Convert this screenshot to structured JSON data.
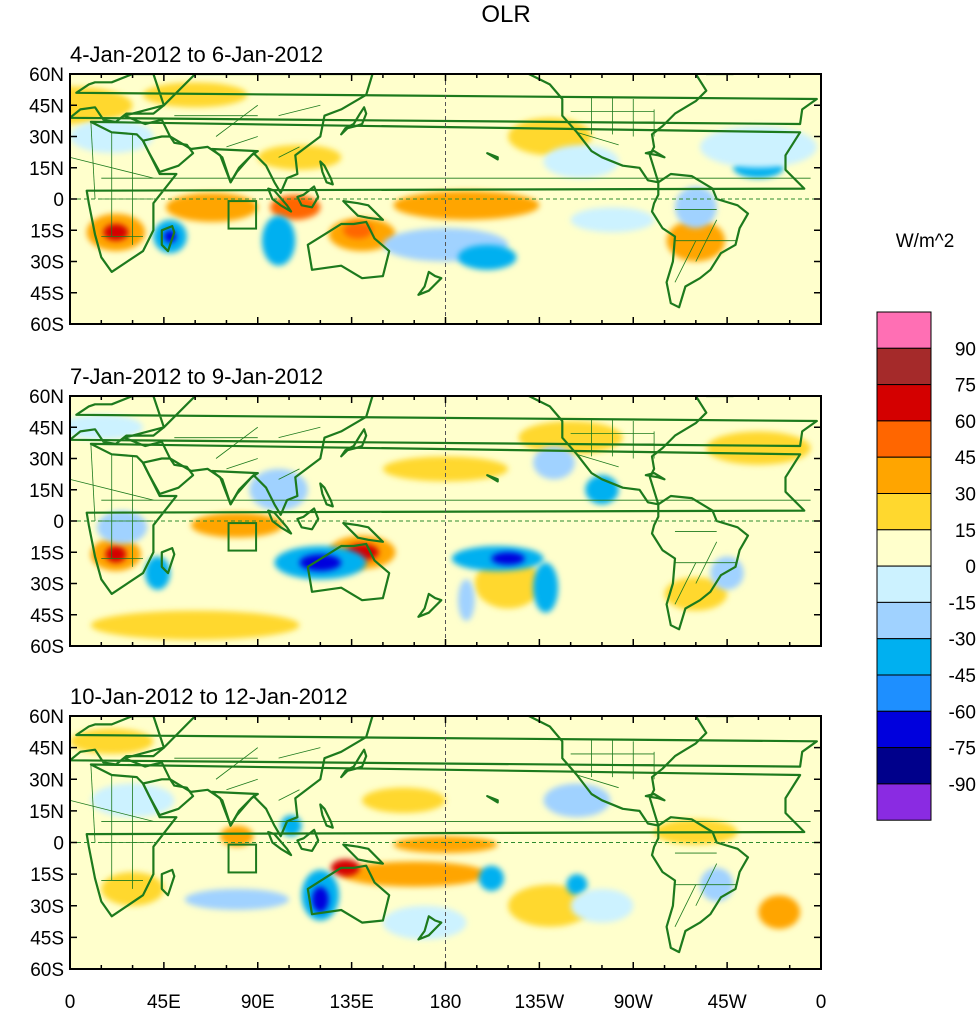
{
  "title": "OLR",
  "units_label": "W/m^2",
  "colors": {
    "land_outline": "#1d7a1d",
    "dashed_line": "#2e8b2e"
  },
  "axes": {
    "lat_ticks": [
      "60N",
      "45N",
      "30N",
      "15N",
      "0",
      "15S",
      "30S",
      "45S",
      "60S"
    ],
    "lon_ticks": [
      "0",
      "45E",
      "90E",
      "135E",
      "180",
      "135W",
      "90W",
      "45W",
      "0"
    ]
  },
  "panels": [
    {
      "label": "4-Jan-2012 to 6-Jan-2012",
      "features": [
        {
          "kind": "pos",
          "level": 2,
          "lon": 22,
          "lat": -16,
          "rx": 14,
          "ry": 9
        },
        {
          "kind": "pos",
          "level": 4,
          "lon": 22,
          "lat": -16,
          "rx": 6,
          "ry": 4
        },
        {
          "kind": "pos",
          "level": 2,
          "lon": 68,
          "lat": -4,
          "rx": 22,
          "ry": 7
        },
        {
          "kind": "pos",
          "level": 3,
          "lon": 108,
          "lat": -4,
          "rx": 12,
          "ry": 6
        },
        {
          "kind": "pos",
          "level": 2,
          "lon": 140,
          "lat": -17,
          "rx": 16,
          "ry": 8
        },
        {
          "kind": "pos",
          "level": 3,
          "lon": 138,
          "lat": -15,
          "rx": 7,
          "ry": 4
        },
        {
          "kind": "pos",
          "level": 2,
          "lon": 190,
          "lat": -3,
          "rx": 35,
          "ry": 7
        },
        {
          "kind": "pos",
          "level": 1,
          "lon": 360,
          "lat": 45,
          "rx": 30,
          "ry": 9
        },
        {
          "kind": "pos",
          "level": 2,
          "lon": 300,
          "lat": -20,
          "rx": 14,
          "ry": 10
        },
        {
          "kind": "pos",
          "level": 1,
          "lon": 230,
          "lat": 30,
          "rx": 20,
          "ry": 9
        },
        {
          "kind": "pos",
          "level": 1,
          "lon": 60,
          "lat": 50,
          "rx": 25,
          "ry": 6
        },
        {
          "kind": "pos",
          "level": 1,
          "lon": 110,
          "lat": 20,
          "rx": 20,
          "ry": 6
        },
        {
          "kind": "neg",
          "level": 3,
          "lon": 48,
          "lat": -18,
          "rx": 8,
          "ry": 8
        },
        {
          "kind": "neg",
          "level": 5,
          "lon": 48,
          "lat": -18,
          "rx": 3,
          "ry": 3
        },
        {
          "kind": "neg",
          "level": 3,
          "lon": 100,
          "lat": -20,
          "rx": 8,
          "ry": 12
        },
        {
          "kind": "neg",
          "level": 2,
          "lon": 180,
          "lat": -22,
          "rx": 30,
          "ry": 8
        },
        {
          "kind": "neg",
          "level": 3,
          "lon": 200,
          "lat": -28,
          "rx": 14,
          "ry": 6
        },
        {
          "kind": "neg",
          "level": 1,
          "lon": 245,
          "lat": 18,
          "rx": 18,
          "ry": 8
        },
        {
          "kind": "neg",
          "level": 3,
          "lon": 330,
          "lat": 15,
          "rx": 12,
          "ry": 5
        },
        {
          "kind": "neg",
          "level": 1,
          "lon": 330,
          "lat": 25,
          "rx": 28,
          "ry": 10
        },
        {
          "kind": "neg",
          "level": 2,
          "lon": 300,
          "lat": -4,
          "rx": 10,
          "ry": 10
        },
        {
          "kind": "neg",
          "level": 1,
          "lon": 260,
          "lat": -10,
          "rx": 20,
          "ry": 6
        },
        {
          "kind": "neg",
          "level": 1,
          "lon": 20,
          "lat": 30,
          "rx": 20,
          "ry": 8
        }
      ]
    },
    {
      "label": "7-Jan-2012 to 9-Jan-2012",
      "features": [
        {
          "kind": "pos",
          "level": 2,
          "lon": 22,
          "lat": -16,
          "rx": 12,
          "ry": 8
        },
        {
          "kind": "pos",
          "level": 4,
          "lon": 22,
          "lat": -16,
          "rx": 5,
          "ry": 4
        },
        {
          "kind": "pos",
          "level": 2,
          "lon": 80,
          "lat": -2,
          "rx": 22,
          "ry": 6
        },
        {
          "kind": "pos",
          "level": 2,
          "lon": 140,
          "lat": -15,
          "rx": 16,
          "ry": 8
        },
        {
          "kind": "pos",
          "level": 4,
          "lon": 140,
          "lat": -15,
          "rx": 8,
          "ry": 4
        },
        {
          "kind": "pos",
          "level": 1,
          "lon": 210,
          "lat": -30,
          "rx": 16,
          "ry": 12
        },
        {
          "kind": "pos",
          "level": 1,
          "lon": 60,
          "lat": -50,
          "rx": 50,
          "ry": 7
        },
        {
          "kind": "pos",
          "level": 1,
          "lon": 240,
          "lat": 40,
          "rx": 25,
          "ry": 8
        },
        {
          "kind": "pos",
          "level": 1,
          "lon": 330,
          "lat": 35,
          "rx": 25,
          "ry": 8
        },
        {
          "kind": "pos",
          "level": 1,
          "lon": 180,
          "lat": 25,
          "rx": 30,
          "ry": 6
        },
        {
          "kind": "pos",
          "level": 1,
          "lon": 300,
          "lat": -35,
          "rx": 15,
          "ry": 8
        },
        {
          "kind": "neg",
          "level": 3,
          "lon": 42,
          "lat": -25,
          "rx": 6,
          "ry": 8
        },
        {
          "kind": "neg",
          "level": 3,
          "lon": 120,
          "lat": -20,
          "rx": 22,
          "ry": 8
        },
        {
          "kind": "neg",
          "level": 5,
          "lon": 120,
          "lat": -20,
          "rx": 10,
          "ry": 4
        },
        {
          "kind": "neg",
          "level": 3,
          "lon": 205,
          "lat": -18,
          "rx": 22,
          "ry": 6
        },
        {
          "kind": "neg",
          "level": 5,
          "lon": 210,
          "lat": -18,
          "rx": 8,
          "ry": 3
        },
        {
          "kind": "neg",
          "level": 3,
          "lon": 228,
          "lat": -32,
          "rx": 6,
          "ry": 12
        },
        {
          "kind": "neg",
          "level": 2,
          "lon": 190,
          "lat": -38,
          "rx": 4,
          "ry": 10
        },
        {
          "kind": "neg",
          "level": 3,
          "lon": 255,
          "lat": 15,
          "rx": 8,
          "ry": 7
        },
        {
          "kind": "neg",
          "level": 2,
          "lon": 232,
          "lat": 28,
          "rx": 10,
          "ry": 8
        },
        {
          "kind": "neg",
          "level": 2,
          "lon": 100,
          "lat": 15,
          "rx": 14,
          "ry": 10
        },
        {
          "kind": "neg",
          "level": 2,
          "lon": 25,
          "lat": -3,
          "rx": 12,
          "ry": 8
        },
        {
          "kind": "neg",
          "level": 2,
          "lon": 315,
          "lat": -25,
          "rx": 8,
          "ry": 8
        },
        {
          "kind": "neg",
          "level": 1,
          "lon": 15,
          "lat": 45,
          "rx": 20,
          "ry": 6
        }
      ]
    },
    {
      "label": "10-Jan-2012 to 12-Jan-2012",
      "features": [
        {
          "kind": "pos",
          "level": 2,
          "lon": 165,
          "lat": -15,
          "rx": 35,
          "ry": 6
        },
        {
          "kind": "pos",
          "level": 4,
          "lon": 132,
          "lat": -12,
          "rx": 7,
          "ry": 4
        },
        {
          "kind": "pos",
          "level": 2,
          "lon": 180,
          "lat": -1,
          "rx": 25,
          "ry": 4
        },
        {
          "kind": "pos",
          "level": 2,
          "lon": 80,
          "lat": 3,
          "rx": 8,
          "ry": 5
        },
        {
          "kind": "pos",
          "level": 2,
          "lon": 340,
          "lat": -33,
          "rx": 10,
          "ry": 8
        },
        {
          "kind": "pos",
          "level": 1,
          "lon": 30,
          "lat": -22,
          "rx": 15,
          "ry": 8
        },
        {
          "kind": "pos",
          "level": 1,
          "lon": 230,
          "lat": -30,
          "rx": 20,
          "ry": 10
        },
        {
          "kind": "pos",
          "level": 1,
          "lon": 20,
          "lat": 48,
          "rx": 20,
          "ry": 6
        },
        {
          "kind": "pos",
          "level": 1,
          "lon": 160,
          "lat": 20,
          "rx": 20,
          "ry": 6
        },
        {
          "kind": "pos",
          "level": 1,
          "lon": 300,
          "lat": 5,
          "rx": 20,
          "ry": 6
        },
        {
          "kind": "neg",
          "level": 3,
          "lon": 120,
          "lat": -25,
          "rx": 9,
          "ry": 12
        },
        {
          "kind": "neg",
          "level": 5,
          "lon": 120,
          "lat": -27,
          "rx": 4,
          "ry": 6
        },
        {
          "kind": "neg",
          "level": 3,
          "lon": 106,
          "lat": 8,
          "rx": 5,
          "ry": 5
        },
        {
          "kind": "neg",
          "level": 3,
          "lon": 202,
          "lat": -17,
          "rx": 6,
          "ry": 6
        },
        {
          "kind": "neg",
          "level": 3,
          "lon": 243,
          "lat": -20,
          "rx": 5,
          "ry": 5
        },
        {
          "kind": "neg",
          "level": 2,
          "lon": 243,
          "lat": 20,
          "rx": 16,
          "ry": 8
        },
        {
          "kind": "neg",
          "level": 2,
          "lon": 310,
          "lat": -20,
          "rx": 8,
          "ry": 8
        },
        {
          "kind": "neg",
          "level": 2,
          "lon": 80,
          "lat": -27,
          "rx": 25,
          "ry": 5
        },
        {
          "kind": "neg",
          "level": 1,
          "lon": 170,
          "lat": -38,
          "rx": 20,
          "ry": 8
        },
        {
          "kind": "neg",
          "level": 1,
          "lon": 255,
          "lat": -30,
          "rx": 15,
          "ry": 8
        },
        {
          "kind": "neg",
          "level": 1,
          "lon": 30,
          "lat": 20,
          "rx": 20,
          "ry": 8
        }
      ]
    }
  ],
  "colorbar": {
    "labels": [
      "90",
      "75",
      "60",
      "45",
      "30",
      "15",
      "0",
      "-15",
      "-30",
      "-45",
      "-60",
      "-75",
      "-90"
    ],
    "colors": [
      "#ff6fb4",
      "#a52a2a",
      "#d40000",
      "#ff6600",
      "#ffa500",
      "#ffd82e",
      "#ffffcc",
      "#ccf2ff",
      "#a0d2ff",
      "#00b0f0",
      "#1e8fff",
      "#0000dd",
      "#00008b",
      "#8a2be2"
    ]
  }
}
